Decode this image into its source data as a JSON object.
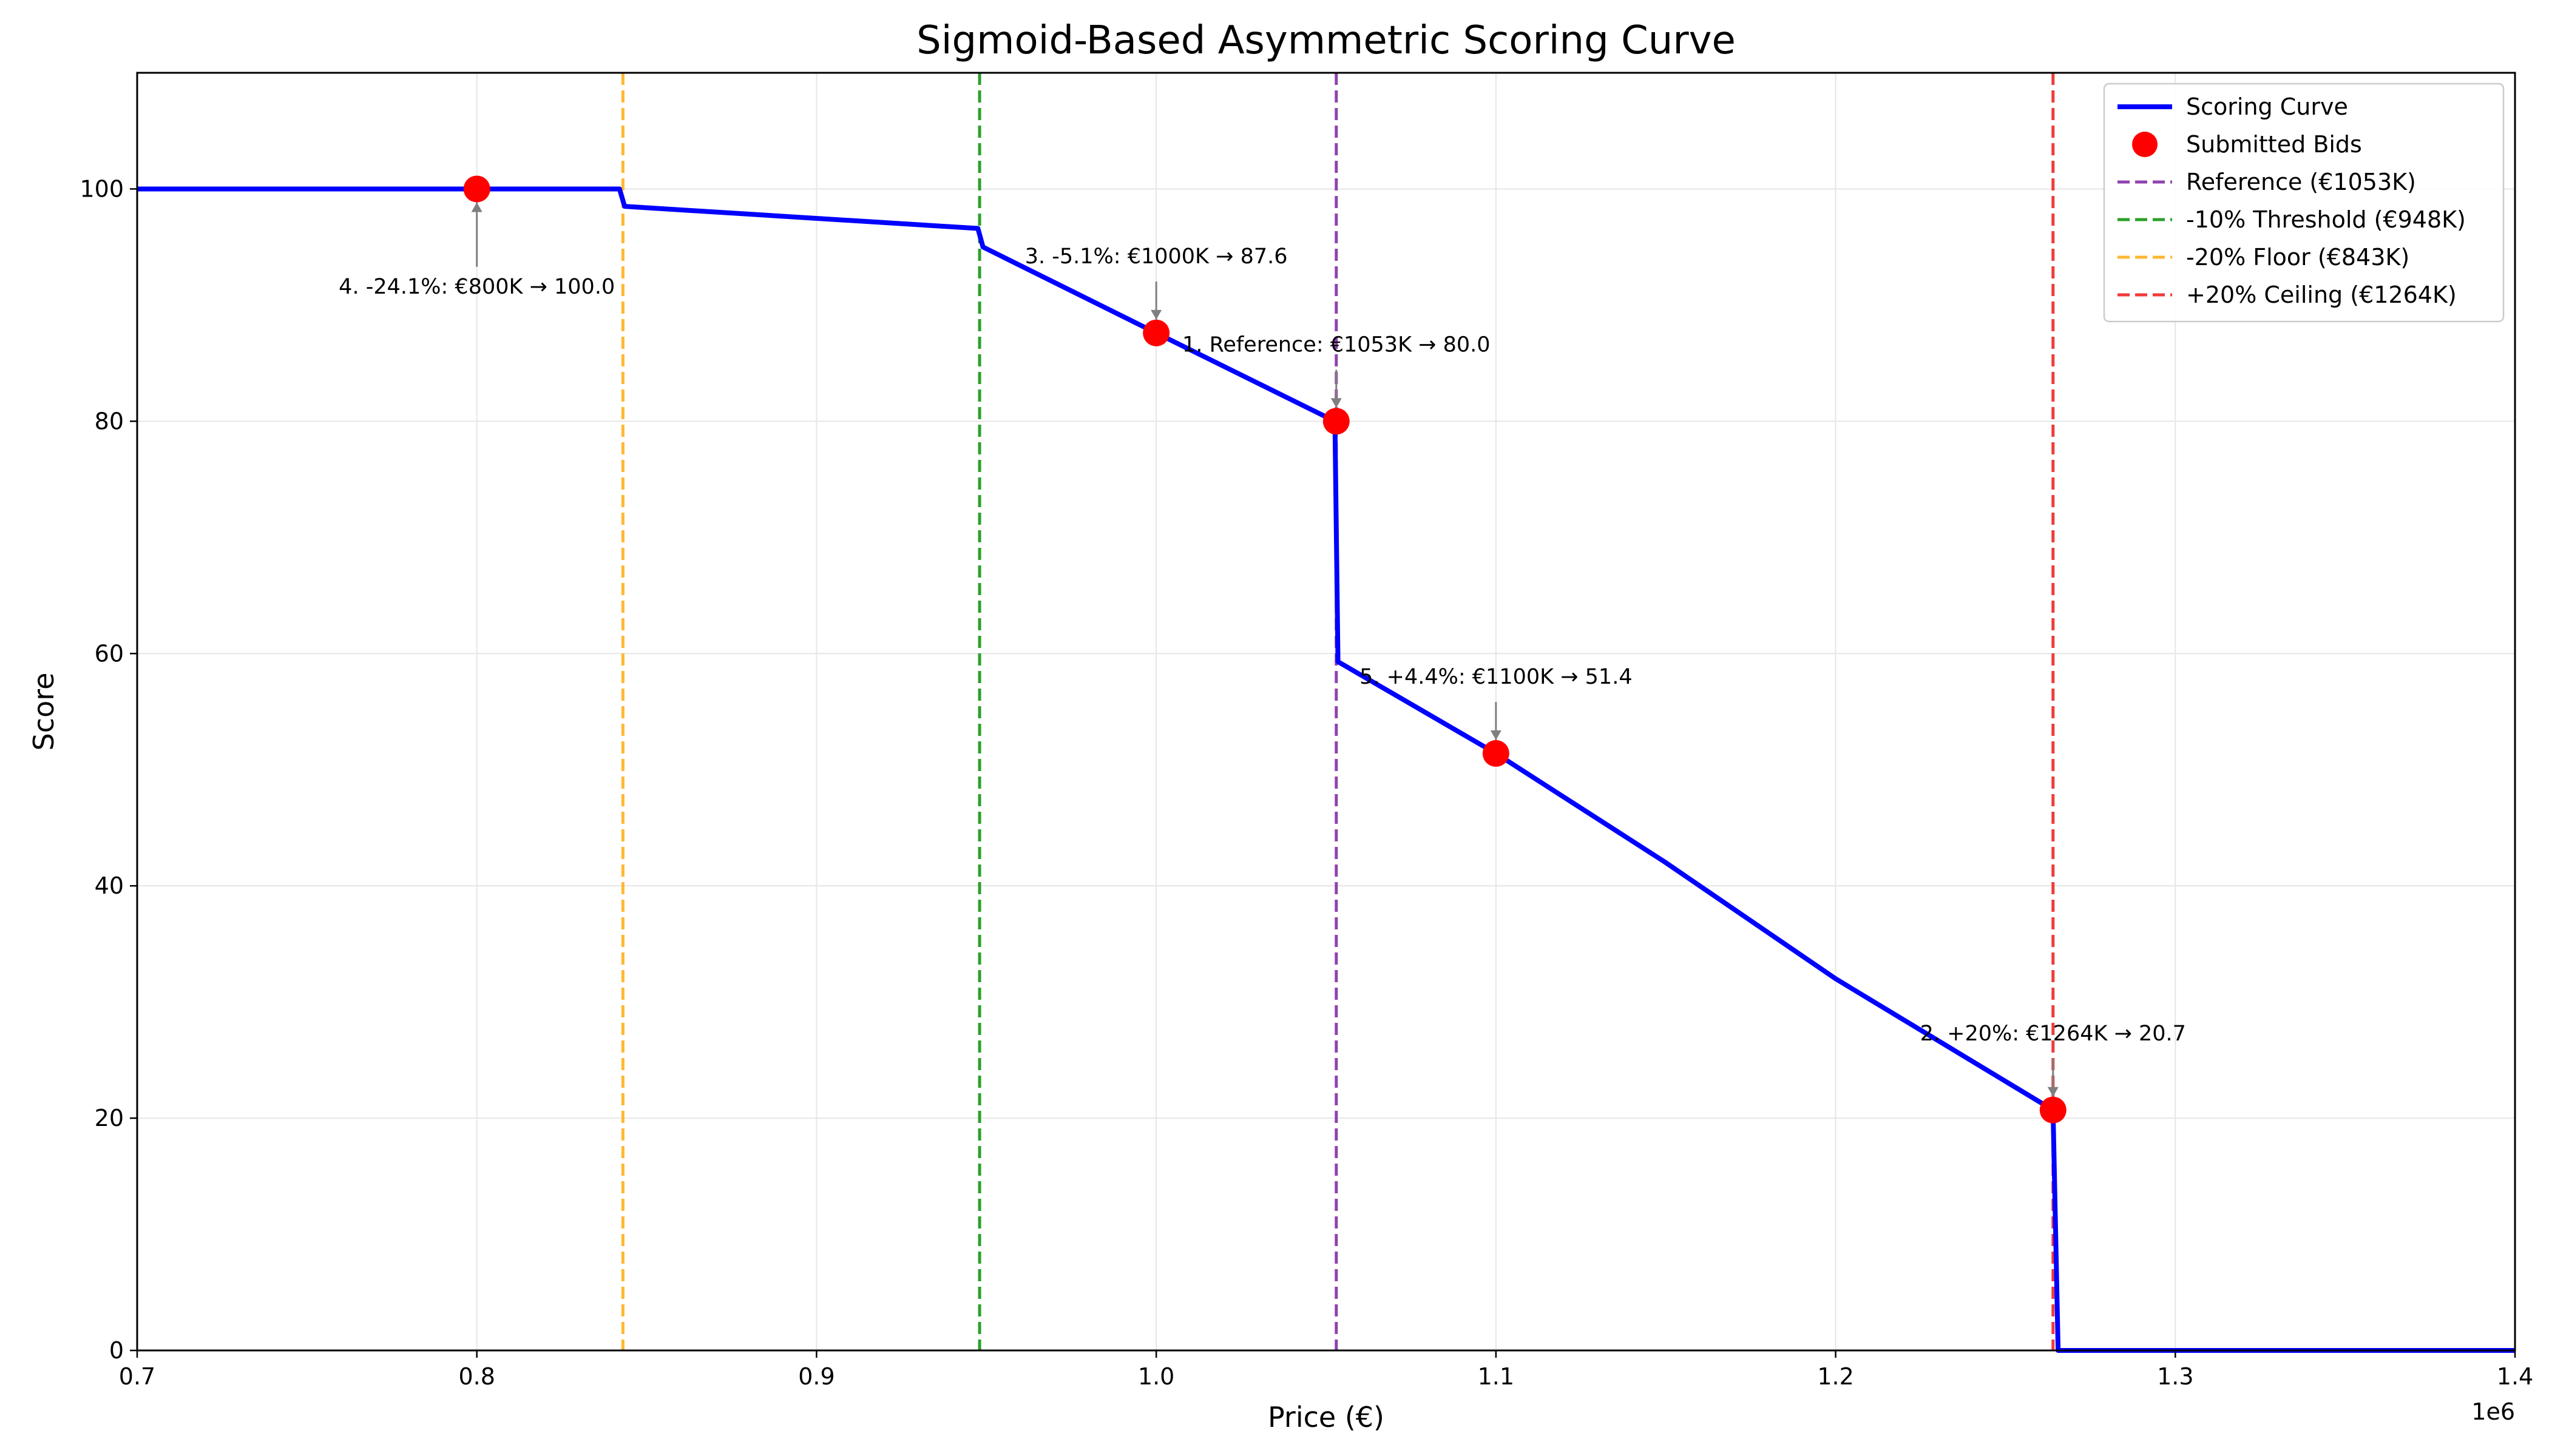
{
  "chart_data": {
    "type": "line",
    "title": "Sigmoid-Based Asymmetric Scoring Curve",
    "xlabel": "Price (€)",
    "ylabel": "Score",
    "x_offset_label": "1e6",
    "xlim": [
      700000,
      1400000
    ],
    "ylim": [
      0,
      110
    ],
    "x_ticks": [
      700000,
      800000,
      900000,
      1000000,
      1100000,
      1200000,
      1300000,
      1400000
    ],
    "x_tick_labels": [
      "0.7",
      "0.8",
      "0.9",
      "1.0",
      "1.1",
      "1.2",
      "1.3",
      "1.4"
    ],
    "y_ticks": [
      0,
      20,
      40,
      60,
      80,
      100
    ],
    "y_tick_labels": [
      "0",
      "20",
      "40",
      "60",
      "80",
      "100"
    ],
    "grid": true,
    "legend_position": "top-right",
    "series": [
      {
        "name": "Scoring Curve",
        "kind": "line",
        "color": "#0000ff",
        "x": [
          700000,
          842000,
          843500,
          947500,
          949000,
          1000000,
          1052600,
          1053500,
          1100000,
          1150000,
          1200000,
          1264000,
          1265500,
          1400000
        ],
        "y": [
          100,
          100,
          98.5,
          96.6,
          95.0,
          87.6,
          80.0,
          59.3,
          51.4,
          42.0,
          32.0,
          20.7,
          0,
          0
        ]
      },
      {
        "name": "Submitted Bids",
        "kind": "scatter",
        "color": "#ff0000",
        "x": [
          1053000,
          1264000,
          1000000,
          800000,
          1100000
        ],
        "y": [
          80.0,
          20.7,
          87.6,
          100.0,
          51.4
        ],
        "labels": [
          "1. Reference: €1053K → 80.0",
          "2. +20%: €1264K → 20.7",
          "3. -5.1%: €1000K → 87.6",
          "4. -24.1%: €800K → 100.0",
          "5. +4.4%: €1100K → 51.4"
        ]
      }
    ],
    "vlines": [
      {
        "name": "Reference (€1053K)",
        "x": 1053000,
        "color": "#8e44ad"
      },
      {
        "name": "-10% Threshold (€948K)",
        "x": 948000,
        "color": "#2ca02c"
      },
      {
        "name": "-20% Floor (€843K)",
        "x": 843000,
        "color": "#ffb733"
      },
      {
        "name": "+20% Ceiling (€1264K)",
        "x": 1264000,
        "color": "#f03b3b"
      }
    ]
  }
}
